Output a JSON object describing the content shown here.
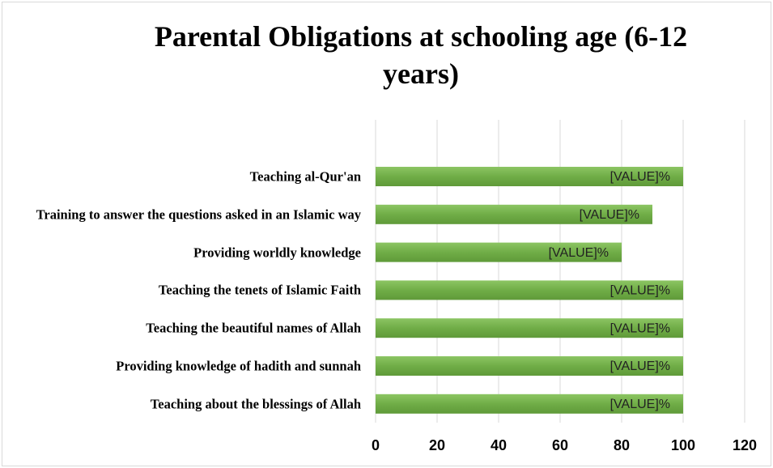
{
  "chart_data": {
    "type": "bar",
    "orientation": "horizontal",
    "title": "Parental Obligations at schooling age (6-12 years)",
    "categories": [
      "Teaching al-Qur'an",
      "Training to answer the questions asked in an Islamic way",
      "Providing worldly knowledge",
      "Teaching the tenets of Islamic Faith",
      "Teaching the beautiful names of Allah",
      "Providing knowledge of hadith and sunnah",
      "Teaching about the blessings of Allah"
    ],
    "values": [
      100,
      90,
      80,
      100,
      100,
      100,
      100
    ],
    "value_labels": [
      "[VALUE]%",
      "[VALUE]%",
      "[VALUE]%",
      "[VALUE]%",
      "[VALUE]%",
      "[VALUE]%",
      "[VALUE]%"
    ],
    "color": "#70ad47",
    "xlim": [
      0,
      120
    ],
    "xticks": [
      0,
      20,
      40,
      60,
      80,
      100,
      120
    ],
    "grid": true
  }
}
